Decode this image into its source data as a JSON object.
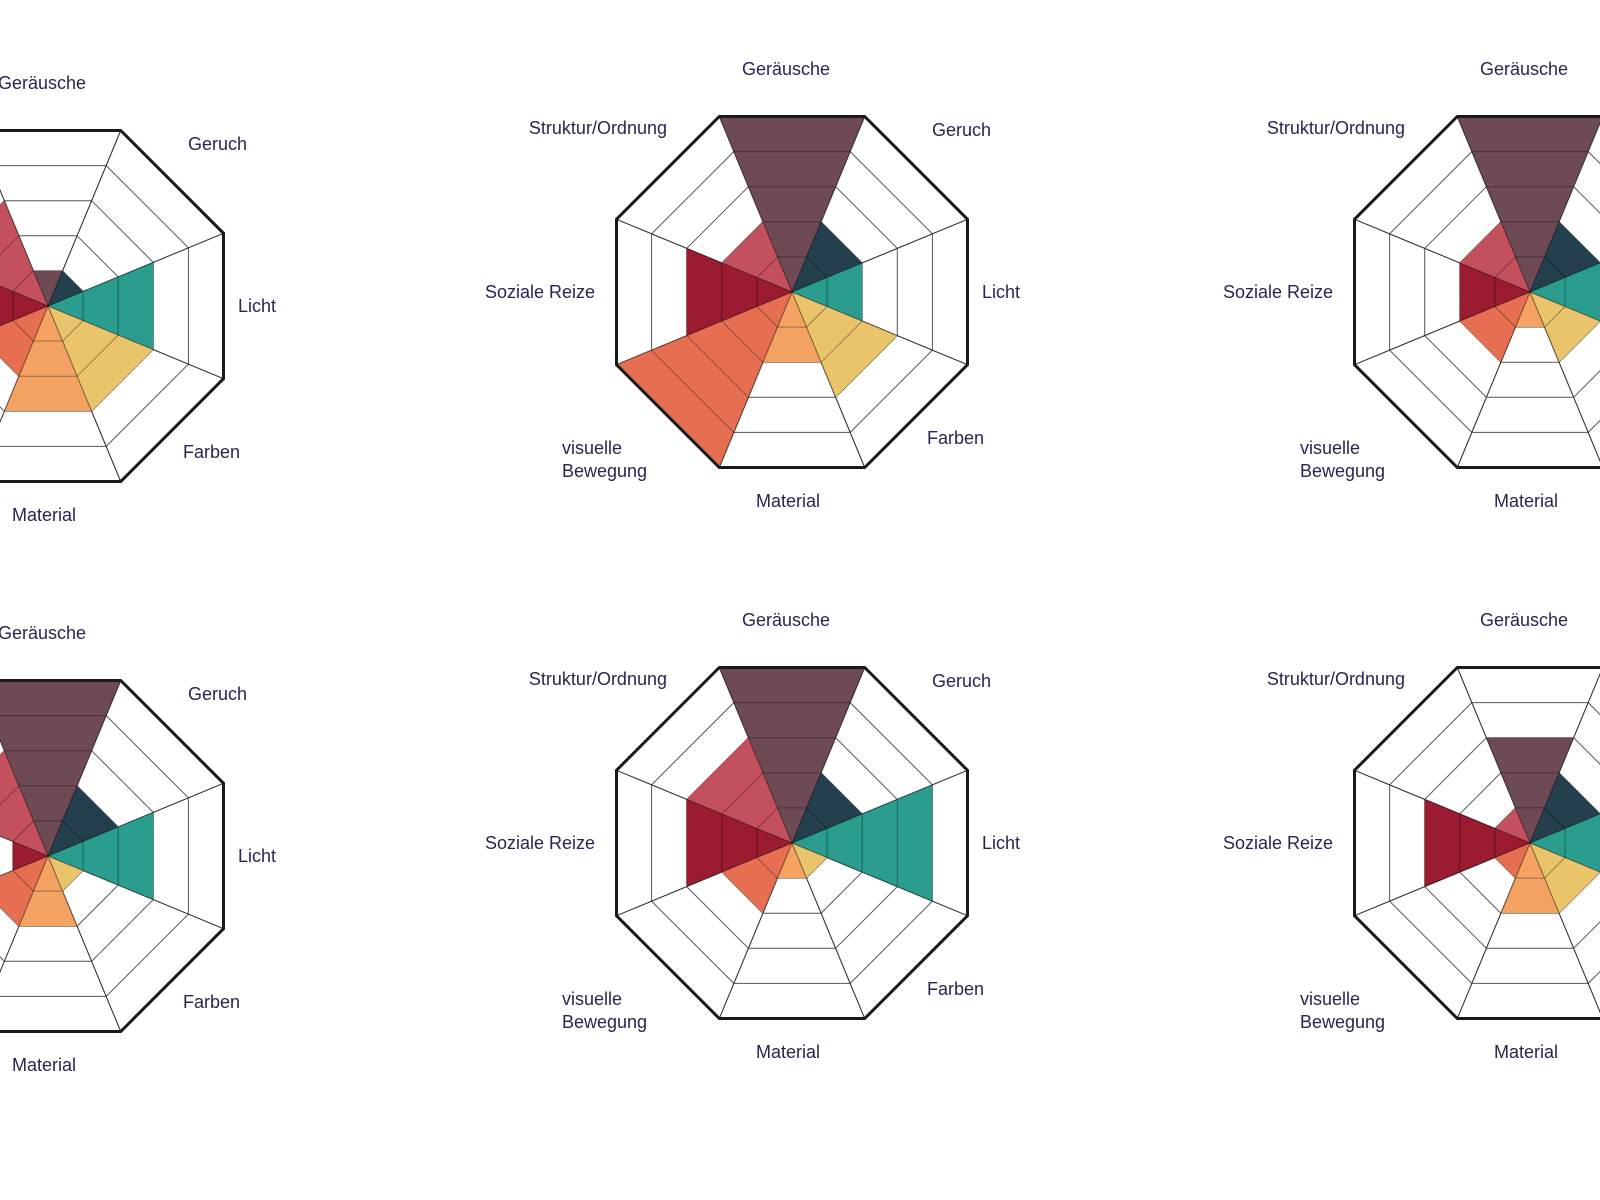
{
  "chart_data": {
    "type": "polar-area",
    "max": 5,
    "axes": [
      "Geräusche",
      "Geruch",
      "Licht",
      "Farben",
      "Material",
      "visuelle Bewegung",
      "Soziale Reize",
      "Struktur/Ordnung"
    ],
    "colors": [
      "#6e4a55",
      "#243f4e",
      "#2a9d8f",
      "#e9c46a",
      "#f4a261",
      "#e76f51",
      "#9b1b30",
      "#c4505d"
    ],
    "charts": [
      {
        "label_geraeusche": "Geräusche",
        "label_geruch": "Geruch",
        "label_licht": "Licht",
        "label_farben": "Farben",
        "label_material": "Material",
        "label_visuelle": "visuelle",
        "label_bewegung": "Bewegung",
        "label_soziale": "Soziale Reize",
        "label_struktur": "Struktur/Ordnung",
        "values": [
          1,
          1,
          3,
          3,
          3,
          2,
          2,
          3
        ]
      },
      {
        "label_geraeusche": "Geräusche",
        "label_geruch": "Geruch",
        "label_licht": "Licht",
        "label_farben": "Farben",
        "label_material": "Material",
        "label_visuelle": "visuelle",
        "label_bewegung": "Bewegung",
        "label_soziale": "Soziale Reize",
        "label_struktur": "Struktur/Ordnung",
        "values": [
          5,
          2,
          2,
          3,
          2,
          5,
          3,
          2
        ]
      },
      {
        "label_geraeusche": "Geräusche",
        "label_geruch": "Geruch",
        "label_licht": "Licht",
        "label_farben": "Farben",
        "label_material": "Material",
        "label_visuelle": "visuelle",
        "label_bewegung": "Bewegung",
        "label_soziale": "Soziale Reize",
        "label_struktur": "Struktur/Ordnung",
        "values": [
          5,
          2,
          2,
          2,
          1,
          2,
          2,
          2
        ]
      },
      {
        "label_geraeusche": "Geräusche",
        "label_geruch": "Geruch",
        "label_licht": "Licht",
        "label_farben": "Farben",
        "label_material": "Material",
        "label_visuelle": "visuelle",
        "label_bewegung": "Bewegung",
        "label_soziale": "Soziale Reize",
        "label_struktur": "Struktur/Ordnung",
        "values": [
          5,
          2,
          3,
          1,
          2,
          2,
          1,
          3
        ]
      },
      {
        "label_geraeusche": "Geräusche",
        "label_geruch": "Geruch",
        "label_licht": "Licht",
        "label_farben": "Farben",
        "label_material": "Material",
        "label_visuelle": "visuelle",
        "label_bewegung": "Bewegung",
        "label_soziale": "Soziale Reize",
        "label_struktur": "Struktur/Ordnung",
        "values": [
          5,
          2,
          4,
          1,
          1,
          2,
          3,
          3
        ]
      },
      {
        "label_geraeusche": "Geräusche",
        "label_geruch": "Geruch",
        "label_licht": "Licht",
        "label_farben": "Farben",
        "label_material": "Material",
        "label_visuelle": "visuelle",
        "label_bewegung": "Bewegung",
        "label_soziale": "Soziale Reize",
        "label_struktur": "Struktur/Ordnung",
        "values": [
          3,
          2,
          2,
          2,
          2,
          1,
          3,
          1
        ]
      }
    ]
  }
}
